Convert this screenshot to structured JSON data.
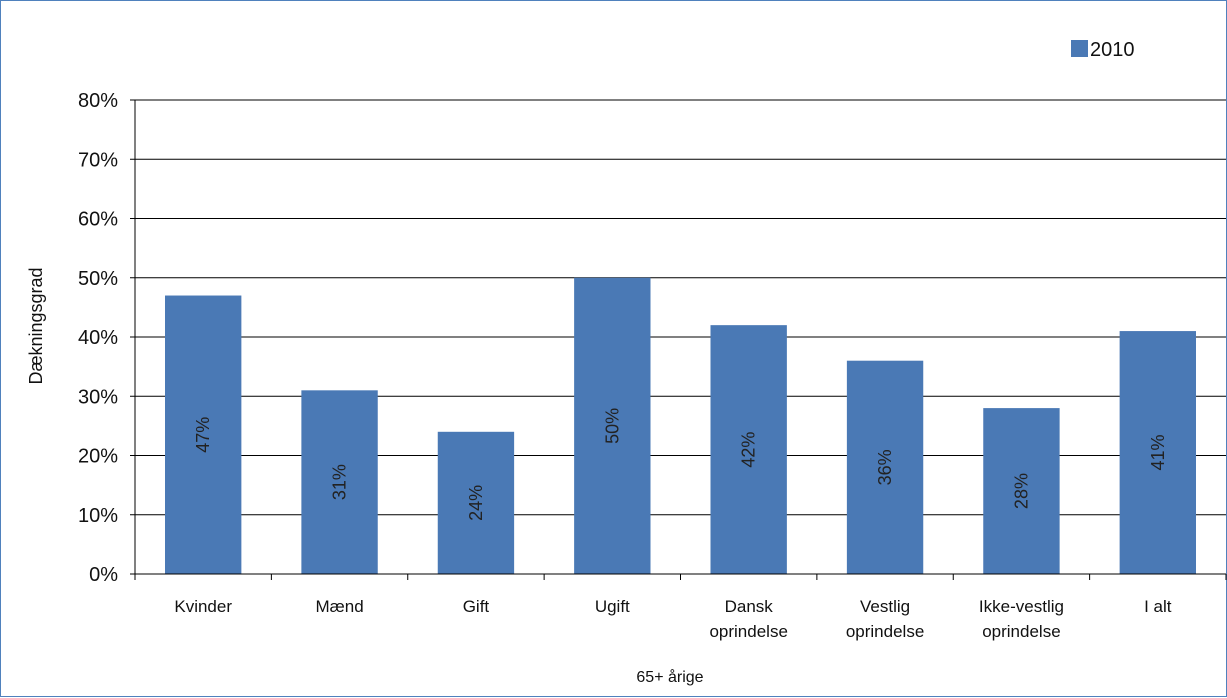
{
  "chart_data": {
    "type": "bar",
    "categories": [
      [
        "Kvinder"
      ],
      [
        "Mænd"
      ],
      [
        "Gift"
      ],
      [
        "Ugift"
      ],
      [
        "Dansk",
        "oprindelse"
      ],
      [
        "Vestlig",
        "oprindelse"
      ],
      [
        "Ikke-vestlig",
        "oprindelse"
      ],
      [
        "I alt"
      ]
    ],
    "series": [
      {
        "name": "2010",
        "values": [
          47,
          31,
          24,
          50,
          42,
          36,
          28,
          41
        ],
        "labels": [
          "47%",
          "31%",
          "24%",
          "50%",
          "42%",
          "36%",
          "28%",
          "41%"
        ],
        "color": "#4A79B5"
      }
    ],
    "ylim": [
      0,
      80
    ],
    "yticks": [
      0,
      10,
      20,
      30,
      40,
      50,
      60,
      70,
      80
    ],
    "ytick_suffix": "%",
    "ylabel": "Dækningsgrad",
    "xlabel": "65+ årige",
    "legend_position": "top-right",
    "grid": true
  }
}
